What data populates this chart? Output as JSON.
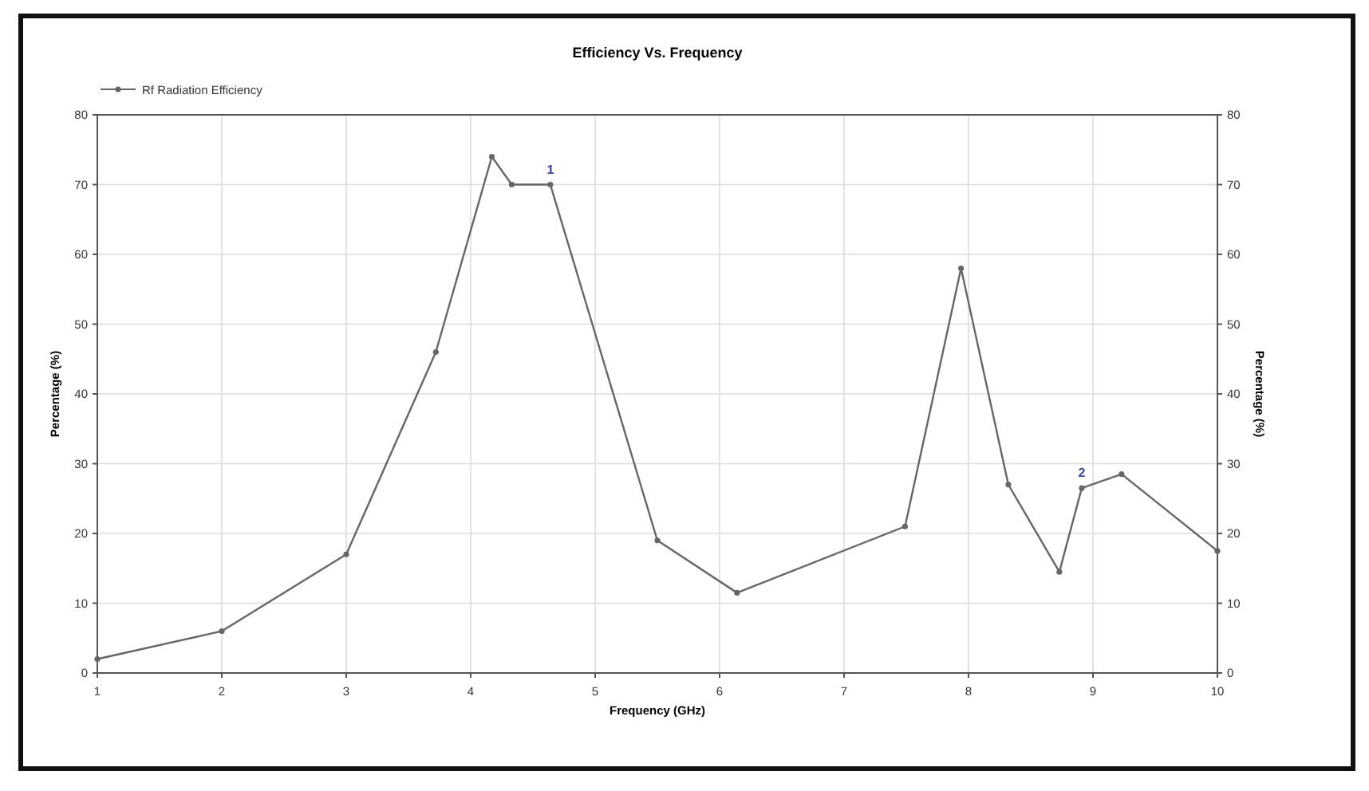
{
  "chart_data": {
    "type": "line",
    "title": "Efficiency Vs. Frequency",
    "xlabel": "Frequency (GHz)",
    "ylabel": "Percentage (%)",
    "y2label": "Percentage (%)",
    "x": [
      1,
      2,
      3,
      3.72,
      4.17,
      4.33,
      4.64,
      5.5,
      6.14,
      7.49,
      7.94,
      8.32,
      8.73,
      8.91,
      9.23,
      10
    ],
    "series": [
      {
        "name": "Rf Radiation Efficiency",
        "color": "#666666",
        "values": [
          2,
          6,
          17,
          46,
          74,
          70,
          70,
          19,
          11.5,
          21,
          58,
          27,
          14.5,
          26.5,
          28.5,
          17.5
        ]
      }
    ],
    "xlim": [
      1,
      10
    ],
    "xticks": [
      1,
      2,
      3,
      4,
      5,
      6,
      7,
      8,
      9,
      10
    ],
    "ylim": [
      0,
      80
    ],
    "yticks": [
      0,
      10,
      20,
      30,
      40,
      50,
      60,
      70,
      80
    ],
    "y2lim": [
      0,
      80
    ],
    "y2ticks": [
      0,
      10,
      20,
      30,
      40,
      50,
      60,
      70,
      80
    ],
    "annotations": [
      {
        "text": "1",
        "x": 4.64,
        "y": 70
      },
      {
        "text": "2",
        "x": 8.91,
        "y": 26.5
      }
    ],
    "grid": true,
    "legend": "top left",
    "marker": "circle",
    "line_style": "solid"
  }
}
